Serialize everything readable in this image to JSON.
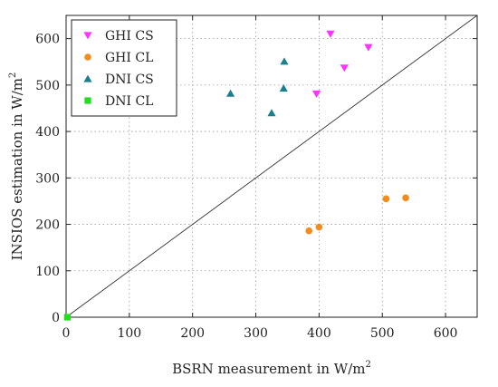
{
  "chart_data": {
    "type": "scatter",
    "xlabel": "BSRN measurement in W/m",
    "xlabel_sup": "2",
    "ylabel": "INSIOS estimation in W/m",
    "ylabel_sup": "2",
    "xlim": [
      0,
      650
    ],
    "ylim": [
      0,
      650
    ],
    "xticks": [
      0,
      100,
      200,
      300,
      400,
      500,
      600
    ],
    "yticks": [
      0,
      100,
      200,
      300,
      400,
      500,
      600
    ],
    "grid": true,
    "legend_position": "top-left",
    "reference_line": {
      "from": [
        0,
        0
      ],
      "to": [
        650,
        650
      ]
    },
    "series": [
      {
        "name": "GHI CS",
        "marker": "triangle-down",
        "color": "#ff33ff",
        "points": [
          [
            396,
            481
          ],
          [
            418,
            610
          ],
          [
            440,
            537
          ],
          [
            478,
            581
          ]
        ]
      },
      {
        "name": "GHI CL",
        "marker": "circle",
        "color": "#f28c1e",
        "points": [
          [
            384,
            186
          ],
          [
            400,
            194
          ],
          [
            506,
            255
          ],
          [
            537,
            257
          ]
        ]
      },
      {
        "name": "DNI CS",
        "marker": "triangle-up",
        "color": "#1a7f8e",
        "points": [
          [
            260,
            482
          ],
          [
            325,
            440
          ],
          [
            344,
            493
          ],
          [
            345,
            551
          ]
        ]
      },
      {
        "name": "DNI CL",
        "marker": "square",
        "color": "#22dd22",
        "points": [
          [
            2,
            0
          ]
        ]
      }
    ]
  }
}
